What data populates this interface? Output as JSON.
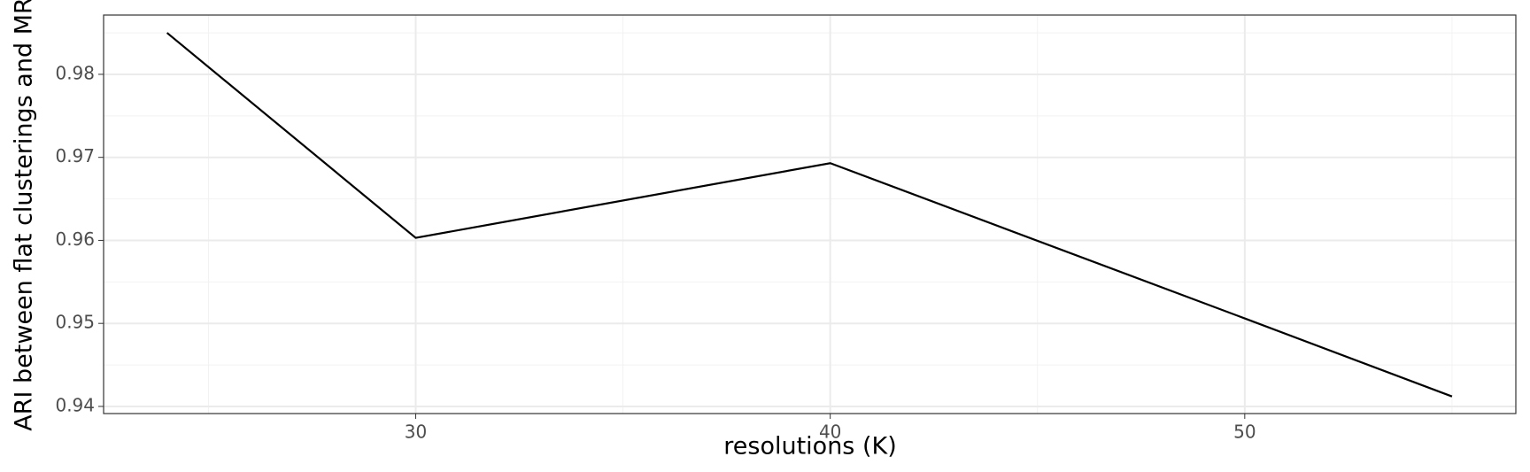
{
  "chart_data": {
    "type": "line",
    "xlabel": "resolutions (K)",
    "ylabel": "ARI between flat clusterings and MR",
    "x": [
      24,
      30,
      40,
      50,
      55
    ],
    "series": [
      {
        "color": "#000000",
        "values": [
          0.985,
          0.9603,
          0.9693,
          0.9506,
          0.9412
        ]
      }
    ],
    "xlim": [
      22.47,
      56.54
    ],
    "xticks": [
      30,
      40,
      50
    ],
    "xminor_ticks": [
      25,
      35,
      45,
      55
    ],
    "ylim": [
      0.93914,
      0.98714
    ],
    "yticks": [
      0.94,
      0.95,
      0.96,
      0.97,
      0.98
    ],
    "yminor_ticks": [
      0.945,
      0.955,
      0.965,
      0.975,
      0.985
    ],
    "grid": true
  }
}
